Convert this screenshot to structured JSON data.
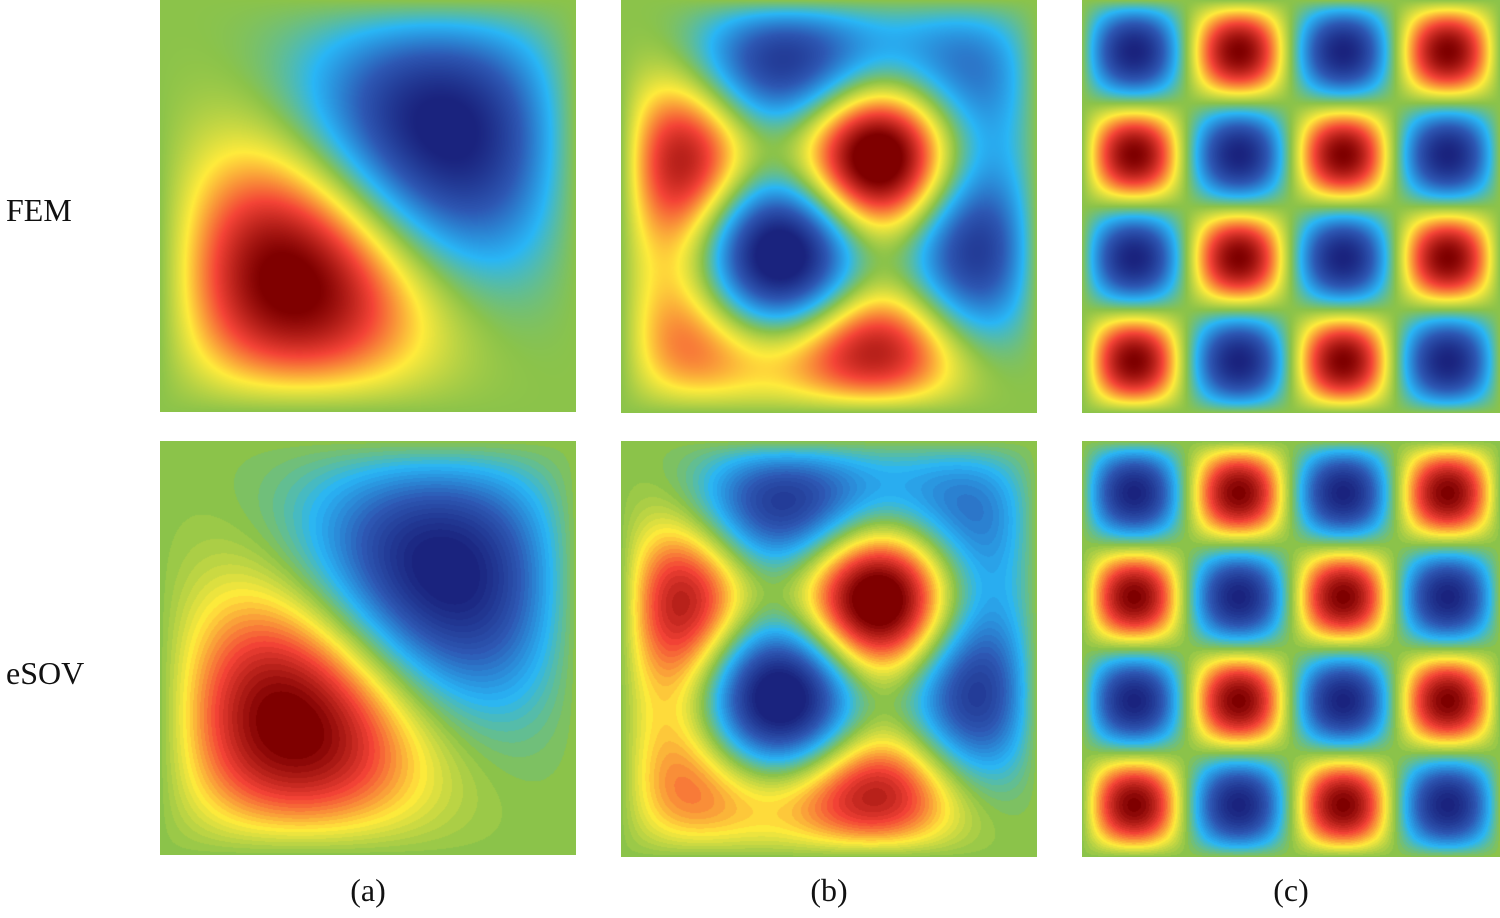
{
  "rows": {
    "top_label": "FEM",
    "bottom_label": "eSOV"
  },
  "columns": {
    "a_label": "(a)",
    "b_label": "(b)",
    "c_label": "(c)"
  },
  "colors": {
    "background_field": "#8bc34a",
    "negative_peak": "#1a237e",
    "positive_peak": "#7f0000",
    "colormap": [
      "#1a237e",
      "#2d57b3",
      "#29b6f6",
      "#8bc34a",
      "#ffeb3b",
      "#f44336",
      "#7f0000"
    ]
  }
}
